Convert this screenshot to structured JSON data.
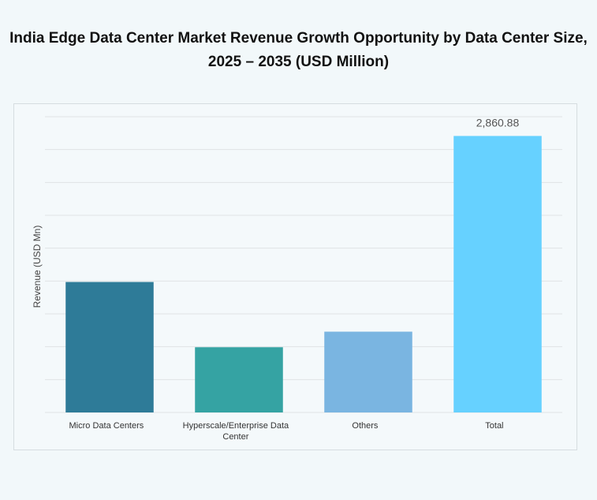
{
  "chart_data": {
    "type": "bar",
    "title": "India Edge Data Center Market Revenue Growth Opportunity by Data Center Size, 2025 – 2035 (USD Million)",
    "y_label": "Revenue (USD Mn)",
    "categories": [
      "Micro Data Centers",
      "Hyperscale/Enterprise Data Center",
      "Others",
      "Total"
    ],
    "values": [
      1350,
      675,
      836,
      2860.88
    ],
    "value_labels": [
      null,
      null,
      null,
      "2,860.88"
    ],
    "colors": [
      "#2e7b98",
      "#35a3a3",
      "#7ab5e1",
      "#66d1ff"
    ],
    "ylim": [
      0,
      3060
    ],
    "yticks": [
      0,
      340,
      680,
      1020,
      1360,
      1700,
      2040,
      2380,
      2720,
      3060
    ],
    "grid": true
  }
}
